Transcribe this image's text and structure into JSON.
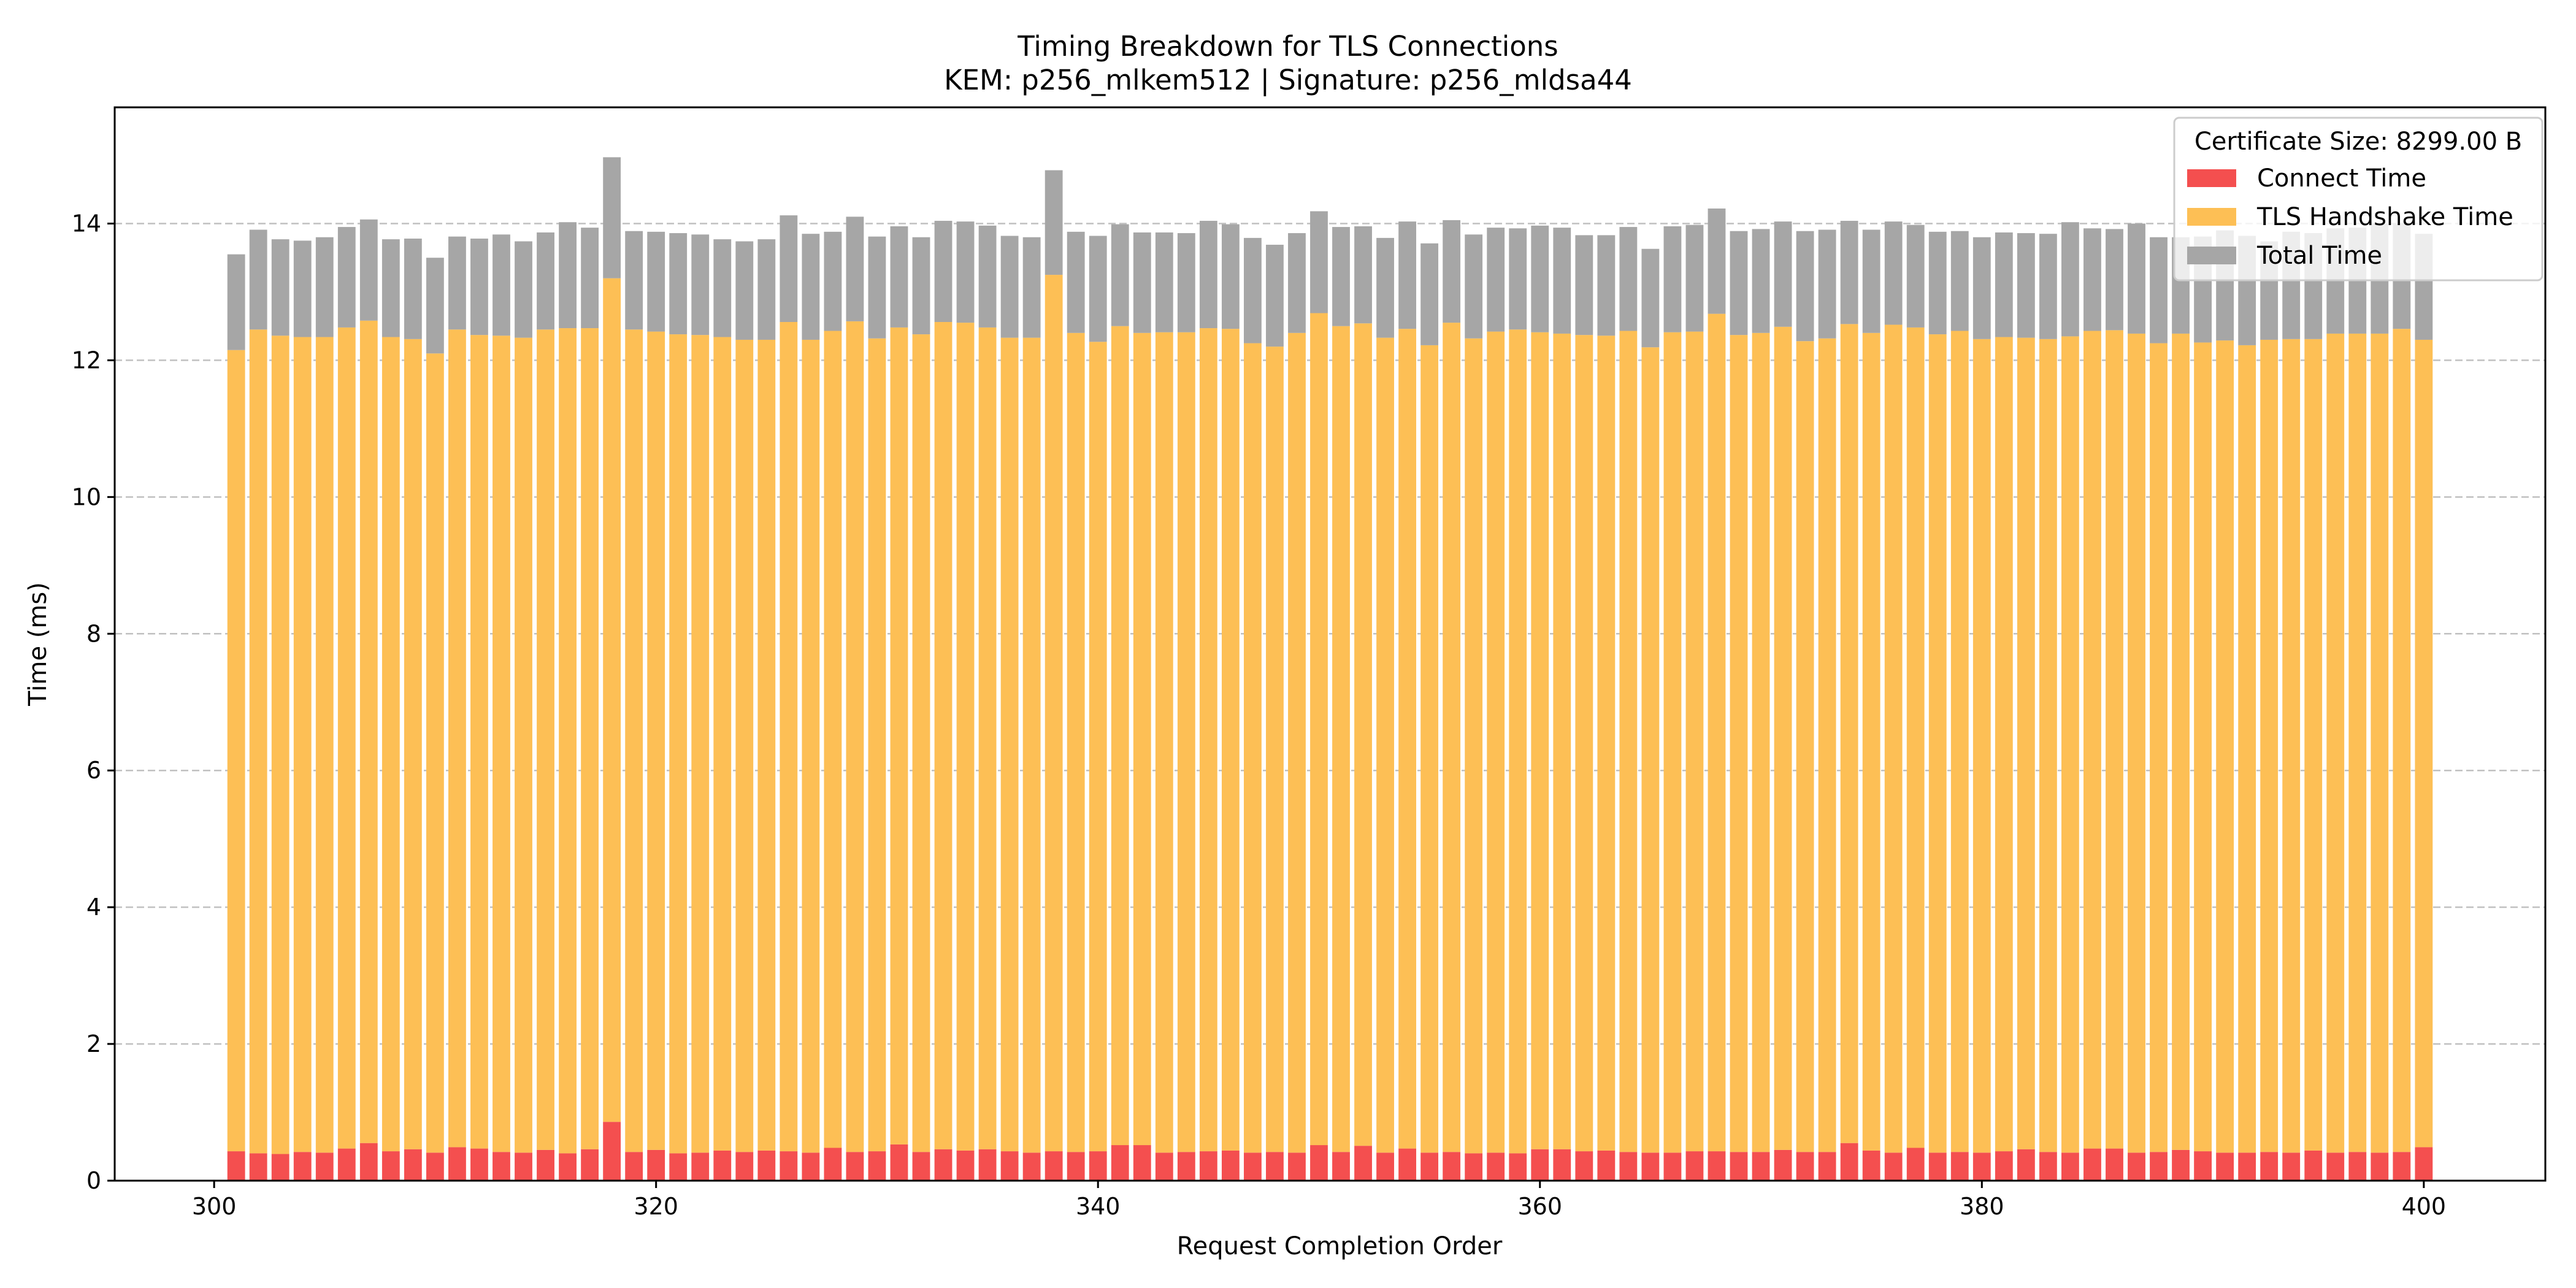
{
  "chart_data": {
    "type": "bar",
    "stacked": true,
    "title": "Timing Breakdown for TLS Connections",
    "subtitle": "KEM: p256_mlkem512 | Signature: p256_mldsa44",
    "xlabel": "Request Completion Order",
    "ylabel": "Time (ms)",
    "xlim": [
      295.5,
      405.5
    ],
    "ylim": [
      0,
      15.7
    ],
    "x_ticks": [
      300,
      320,
      340,
      360,
      380,
      400
    ],
    "y_ticks": [
      0,
      2,
      4,
      6,
      8,
      10,
      12,
      14
    ],
    "grid": "y-dashed",
    "legend_position": "top-right",
    "legend_title": "Certificate Size: 8299.00 B",
    "colors": {
      "connect": "#f44f4f",
      "handshake": "#fdbf55",
      "total": "#a6a6a6"
    },
    "x": [
      301,
      302,
      303,
      304,
      305,
      306,
      307,
      308,
      309,
      310,
      311,
      312,
      313,
      314,
      315,
      316,
      317,
      318,
      319,
      320,
      321,
      322,
      323,
      324,
      325,
      326,
      327,
      328,
      329,
      330,
      331,
      332,
      333,
      334,
      335,
      336,
      337,
      338,
      339,
      340,
      341,
      342,
      343,
      344,
      345,
      346,
      347,
      348,
      349,
      350,
      351,
      352,
      353,
      354,
      355,
      356,
      357,
      358,
      359,
      360,
      361,
      362,
      363,
      364,
      365,
      366,
      367,
      368,
      369,
      370,
      371,
      372,
      373,
      374,
      375,
      376,
      377,
      378,
      379,
      380,
      381,
      382,
      383,
      384,
      385,
      386,
      387,
      388,
      389,
      390,
      391,
      392,
      393,
      394,
      395,
      396,
      397,
      398,
      399,
      400
    ],
    "series": [
      {
        "name": "Connect Time",
        "key": "connect",
        "values": [
          0.43,
          0.4,
          0.39,
          0.42,
          0.41,
          0.47,
          0.55,
          0.43,
          0.46,
          0.41,
          0.49,
          0.47,
          0.42,
          0.41,
          0.45,
          0.4,
          0.46,
          0.86,
          0.42,
          0.45,
          0.4,
          0.41,
          0.44,
          0.42,
          0.44,
          0.43,
          0.41,
          0.48,
          0.42,
          0.43,
          0.53,
          0.42,
          0.46,
          0.44,
          0.46,
          0.43,
          0.41,
          0.43,
          0.42,
          0.43,
          0.52,
          0.52,
          0.41,
          0.42,
          0.43,
          0.44,
          0.41,
          0.42,
          0.41,
          0.52,
          0.42,
          0.51,
          0.41,
          0.47,
          0.41,
          0.42,
          0.4,
          0.41,
          0.4,
          0.46,
          0.46,
          0.43,
          0.44,
          0.42,
          0.41,
          0.41,
          0.43,
          0.43,
          0.42,
          0.42,
          0.45,
          0.42,
          0.42,
          0.55,
          0.44,
          0.41,
          0.48,
          0.41,
          0.42,
          0.41,
          0.43,
          0.46,
          0.42,
          0.41,
          0.47,
          0.47,
          0.41,
          0.42,
          0.45,
          0.43,
          0.41,
          0.41,
          0.42,
          0.41,
          0.44,
          0.41,
          0.42,
          0.41,
          0.42,
          0.49
        ]
      },
      {
        "name": "TLS Handshake Time",
        "key": "handshake",
        "values": [
          11.72,
          12.05,
          11.97,
          11.92,
          11.93,
          12.01,
          12.03,
          11.91,
          11.85,
          11.69,
          11.96,
          11.9,
          11.94,
          11.92,
          12.0,
          12.07,
          12.01,
          12.34,
          12.03,
          11.97,
          11.98,
          11.96,
          11.9,
          11.88,
          11.86,
          12.13,
          11.89,
          11.95,
          12.15,
          11.89,
          11.95,
          11.96,
          12.1,
          12.11,
          12.02,
          11.9,
          11.92,
          12.82,
          11.98,
          11.84,
          11.98,
          11.88,
          12.0,
          11.99,
          12.04,
          12.02,
          11.84,
          11.78,
          11.99,
          12.17,
          12.08,
          12.03,
          11.92,
          11.99,
          11.81,
          12.13,
          11.92,
          12.01,
          12.05,
          11.95,
          11.93,
          11.94,
          11.92,
          12.01,
          11.78,
          12.0,
          11.99,
          12.25,
          11.95,
          11.98,
          12.04,
          11.86,
          11.9,
          11.98,
          11.96,
          12.11,
          12.0,
          11.97,
          12.01,
          11.9,
          11.91,
          11.87,
          11.89,
          11.94,
          11.96,
          11.97,
          11.98,
          11.83,
          11.94,
          11.83,
          11.88,
          11.81,
          11.88,
          11.9,
          11.87,
          11.98,
          11.97,
          11.98,
          12.04,
          11.81
        ]
      },
      {
        "name": "Total Time",
        "key": "total",
        "values": [
          1.4,
          1.46,
          1.41,
          1.41,
          1.46,
          1.47,
          1.48,
          1.43,
          1.47,
          1.4,
          1.36,
          1.41,
          1.48,
          1.41,
          1.42,
          1.55,
          1.47,
          1.77,
          1.44,
          1.46,
          1.48,
          1.47,
          1.43,
          1.44,
          1.47,
          1.56,
          1.55,
          1.45,
          1.53,
          1.49,
          1.48,
          1.42,
          1.48,
          1.48,
          1.49,
          1.49,
          1.47,
          1.53,
          1.48,
          1.55,
          1.49,
          1.47,
          1.46,
          1.45,
          1.57,
          1.53,
          1.54,
          1.49,
          1.46,
          1.49,
          1.45,
          1.42,
          1.46,
          1.57,
          1.49,
          1.5,
          1.52,
          1.52,
          1.48,
          1.56,
          1.55,
          1.46,
          1.47,
          1.52,
          1.44,
          1.55,
          1.56,
          1.54,
          1.52,
          1.52,
          1.54,
          1.61,
          1.59,
          1.51,
          1.51,
          1.51,
          1.5,
          1.5,
          1.46,
          1.49,
          1.53,
          1.53,
          1.54,
          1.67,
          1.5,
          1.48,
          1.61,
          1.55,
          1.41,
          1.55,
          1.61,
          1.6,
          1.44,
          1.57,
          1.55,
          1.54,
          1.55,
          1.61,
          1.54,
          1.55
        ]
      }
    ]
  }
}
